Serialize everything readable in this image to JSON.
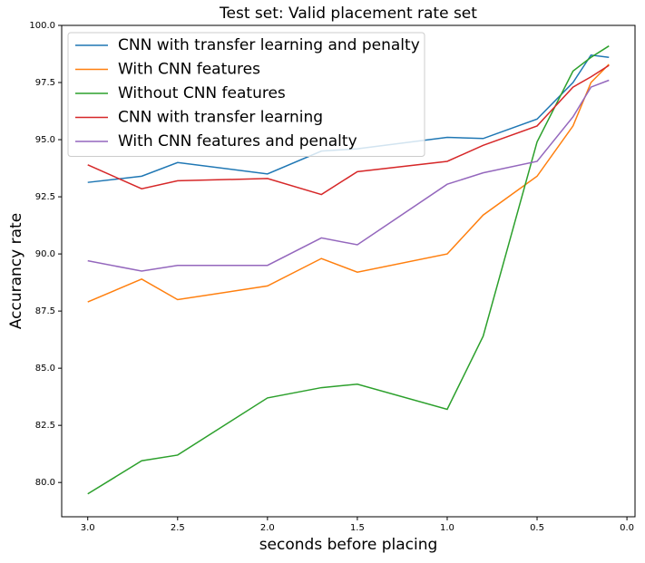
{
  "chart_data": {
    "type": "line",
    "title": "Test set: Valid placement rate set",
    "x_label": "seconds before placing",
    "y_label": "Accurancy rate",
    "x": [
      3.0,
      2.7,
      2.5,
      2.0,
      1.7,
      1.5,
      1.0,
      0.8,
      0.5,
      0.3,
      0.2,
      0.1
    ],
    "series": [
      {
        "name": "CNN with transfer learning and penalty",
        "color": "#1f77b4",
        "values": [
          93.13,
          93.4,
          94.0,
          93.5,
          94.5,
          94.6,
          95.1,
          95.05,
          95.9,
          97.5,
          98.7,
          98.6
        ]
      },
      {
        "name": "With CNN features",
        "color": "#ff7f0e",
        "values": [
          87.9,
          88.9,
          88.0,
          88.6,
          89.8,
          89.2,
          90.0,
          91.7,
          93.4,
          95.6,
          97.5,
          98.3
        ]
      },
      {
        "name": "Without CNN features",
        "color": "#2ca02c",
        "values": [
          79.5,
          80.95,
          81.2,
          83.7,
          84.15,
          84.3,
          83.2,
          86.4,
          94.9,
          98.0,
          98.6,
          99.1
        ]
      },
      {
        "name": "CNN with transfer learning",
        "color": "#d62728",
        "values": [
          93.9,
          92.85,
          93.2,
          93.3,
          92.6,
          93.6,
          94.05,
          94.75,
          95.6,
          97.3,
          97.75,
          98.25
        ]
      },
      {
        "name": "With CNN features and penalty",
        "color": "#9467bd",
        "values": [
          89.7,
          89.25,
          89.5,
          89.5,
          90.7,
          90.4,
          93.05,
          93.55,
          94.05,
          96.0,
          97.3,
          97.6
        ]
      }
    ],
    "xlim": [
      3.145,
      -0.045
    ],
    "xticks": [
      {
        "value": 3,
        "label": "3.0"
      },
      2.5,
      {
        "value": 2,
        "label": "2.0"
      },
      1.5,
      {
        "value": 1,
        "label": "1.0"
      },
      0.5,
      {
        "value": 0,
        "label": "0.0"
      }
    ],
    "ylim": [
      78.5,
      100
    ],
    "yticks": [
      {
        "value": 80,
        "label": "80.0"
      },
      82.5,
      {
        "value": 85,
        "label": "85.0"
      },
      87.5,
      {
        "value": 90,
        "label": "90.0"
      },
      92.5,
      {
        "value": 95,
        "label": "95.0"
      },
      97.5,
      {
        "value": 100,
        "label": "100.0"
      }
    ],
    "grid": false,
    "legend": "upper left"
  }
}
